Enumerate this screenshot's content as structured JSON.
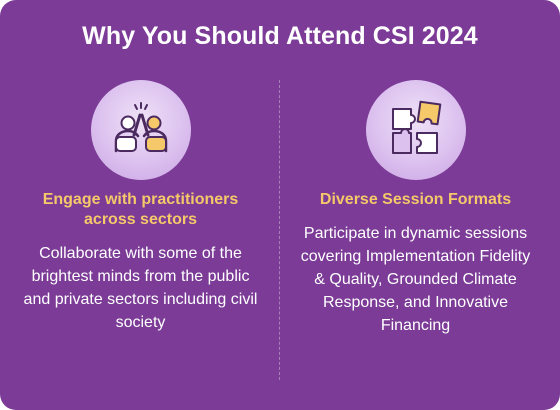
{
  "title": "Why You Should Attend CSI 2024",
  "colors": {
    "background": "#7b3b96",
    "heading_accent": "#f5c86a",
    "body_text": "#ffffff",
    "icon_circle": "#dcc1ef",
    "icon_stroke": "#4b2a5f"
  },
  "columns": [
    {
      "icon": "high-five-icon",
      "heading": "Engage with practitioners across sectors",
      "body": "Collaborate with some of the brightest minds from the public and private sectors including civil society"
    },
    {
      "icon": "puzzle-pieces-icon",
      "heading": "Diverse Session Formats",
      "body": "Participate in dynamic sessions covering Implementation Fidelity & Quality, Grounded Climate Response, and Innovative Financing"
    }
  ]
}
